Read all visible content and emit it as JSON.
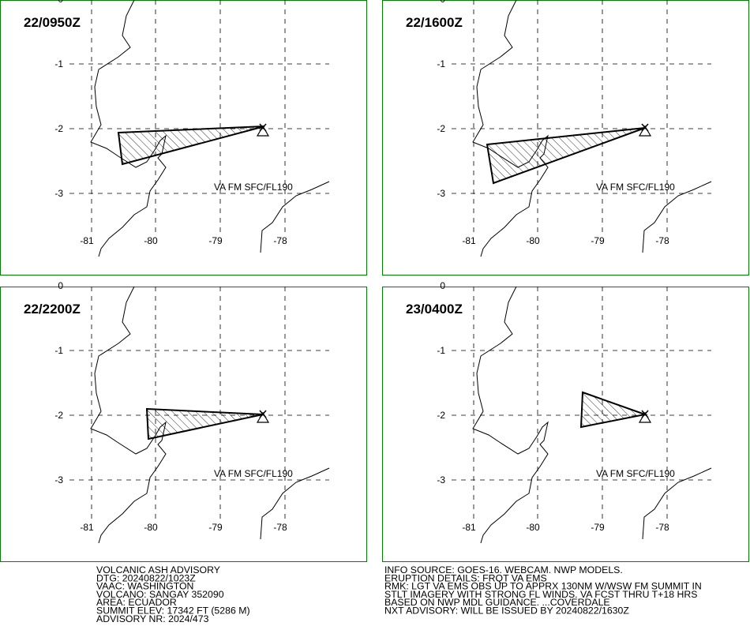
{
  "panels": [
    {
      "time": "22/0950Z",
      "label": "VA FM SFC/FL190"
    },
    {
      "time": "22/1600Z",
      "label": "VA FM SFC/FL190"
    },
    {
      "time": "22/2200Z",
      "label": "VA FM SFC/FL190"
    },
    {
      "time": "23/0400Z",
      "label": "VA FM SFC/FL190"
    }
  ],
  "lat_labels": [
    "0",
    "-1",
    "-2",
    "-3"
  ],
  "lon_labels": [
    "-81",
    "-80",
    "-79",
    "-78"
  ],
  "advisory_left": [
    "VOLCANIC ASH ADVISORY",
    "DTG: 20240822/1023Z",
    "VAAC: WASHINGTON",
    "VOLCANO: SANGAY 352090",
    "AREA: ECUADOR",
    "SUMMIT ELEV: 17342 FT (5286 M)",
    "ADVISORY NR: 2024/473"
  ],
  "advisory_right": [
    "INFO SOURCE: GOES-16. WEBCAM. NWP MODELS.",
    "ERUPTION DETAILS: FRQT VA EMS",
    "RMK: LGT VA EMS OBS UP TO APPRX 130NM W/WSW FM SUMMIT IN",
    "STLT IMAGERY WITH STRONG FL WINDS. VA FCST THRU T+18 HRS",
    "BASED ON NWP MDL GUIDANCE. ...COVERDALE",
    "NXT ADVISORY: WILL BE ISSUED BY 20240822/1630Z"
  ]
}
